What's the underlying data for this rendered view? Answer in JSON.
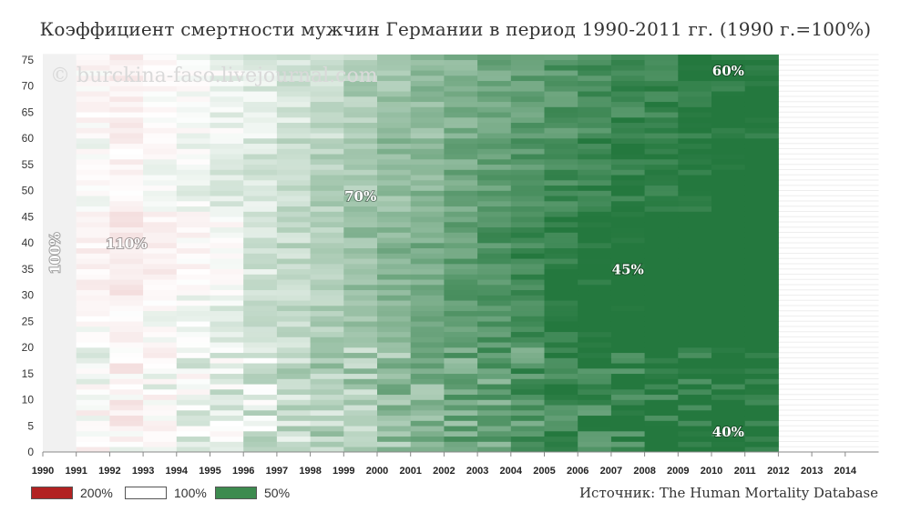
{
  "title": "Коэффициент смертности мужчин Германии в период 1990-2011 гг. (1990 г.=100%)",
  "watermark": "© burckina-faso.livejournal.com",
  "source": "Источник: The Human Mortality Database",
  "legend": [
    {
      "label": "200%",
      "color": "#b22222"
    },
    {
      "label": "100%",
      "color": "#ffffff"
    },
    {
      "label": "50%",
      "color": "#3d8b4f"
    }
  ],
  "chart_data": {
    "type": "heatmap",
    "x_label_years": [
      1990,
      1991,
      1992,
      1993,
      1994,
      1995,
      1996,
      1997,
      1998,
      1999,
      2000,
      2001,
      2002,
      2003,
      2004,
      2005,
      2006,
      2007,
      2008,
      2009,
      2010,
      2011,
      2012,
      2013,
      2014
    ],
    "data_years": [
      1990,
      1991,
      1992,
      1993,
      1994,
      1995,
      1996,
      1997,
      1998,
      1999,
      2000,
      2001,
      2002,
      2003,
      2004,
      2005,
      2006,
      2007,
      2008,
      2009,
      2010,
      2011
    ],
    "y_ticks": [
      0,
      5,
      10,
      15,
      20,
      25,
      30,
      35,
      40,
      45,
      50,
      55,
      60,
      65,
      70,
      75
    ],
    "ages": [
      0,
      75
    ],
    "value": "mortality rate relative to 1990 (1990 = 100%)",
    "color_scale": [
      {
        "value": 200,
        "color": "#b22222"
      },
      {
        "value": 100,
        "color": "#ffffff"
      },
      {
        "value": 50,
        "color": "#3d8b4f"
      }
    ],
    "approx_trend_by_year_percent": {
      "1990": 100,
      "1991": 100,
      "1992": 104,
      "1993": 100,
      "1994": 97,
      "1995": 94,
      "1996": 91,
      "1997": 87,
      "1998": 83,
      "1999": 79,
      "2000": 75,
      "2001": 72,
      "2002": 68,
      "2003": 65,
      "2004": 61,
      "2005": 58,
      "2006": 55,
      "2007": 53,
      "2008": 51,
      "2009": 49,
      "2010": 47,
      "2011": 46
    },
    "annotations": [
      {
        "text": "100%",
        "x": 1990,
        "y": 38,
        "rotated": true
      },
      {
        "text": "110%",
        "x": 1992,
        "y": 39
      },
      {
        "text": "70%",
        "x": 1999,
        "y": 48
      },
      {
        "text": "45%",
        "x": 2007,
        "y": 34
      },
      {
        "text": "60%",
        "x": 2010,
        "y": 72
      },
      {
        "text": "40%",
        "x": 2010,
        "y": 3
      }
    ]
  }
}
